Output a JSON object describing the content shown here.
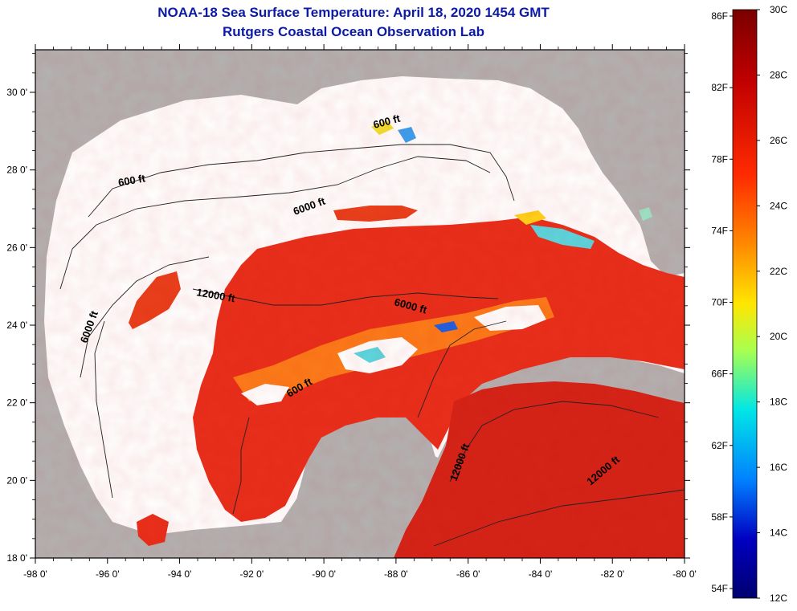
{
  "title": {
    "line1": "NOAA-18 Sea Surface Temperature:  April 18, 2020 1454 GMT",
    "line2": "Rutgers Coastal Ocean Observation Lab"
  },
  "map": {
    "lon_labels": [
      "-98 0'",
      "-96 0'",
      "-94 0'",
      "-92 0'",
      "-90 0'",
      "-88 0'",
      "-86 0'",
      "-84 0'",
      "-82 0'",
      "-80 0'"
    ],
    "lat_labels": [
      "30 0'",
      "28 0'",
      "26 0'",
      "24 0'",
      "22 0'",
      "20 0'",
      "18 0'"
    ],
    "contour_labels": [
      "600 ft",
      "6000 ft",
      "600 ft",
      "12000 ft",
      "6000 ft",
      "6000 ft",
      "600 ft",
      "12000 ft",
      "12000 ft"
    ],
    "colors": {
      "land": "#b3b3b3",
      "cloud": "#ffffff",
      "warm_water": "#e8301c",
      "title": "#0c1aa6"
    }
  },
  "colorbar": {
    "f_labels": [
      "86F",
      "82F",
      "78F",
      "74F",
      "70F",
      "66F",
      "62F",
      "58F",
      "54F"
    ],
    "c_labels": [
      "30C",
      "28C",
      "26C",
      "24C",
      "22C",
      "20C",
      "18C",
      "16C",
      "14C",
      "12C"
    ],
    "stops": [
      "#7a0000",
      "#c00000",
      "#ff2a00",
      "#ff8a00",
      "#ffe600",
      "#a8ff50",
      "#00e6e6",
      "#0080ff",
      "#0000c0",
      "#000070"
    ]
  }
}
